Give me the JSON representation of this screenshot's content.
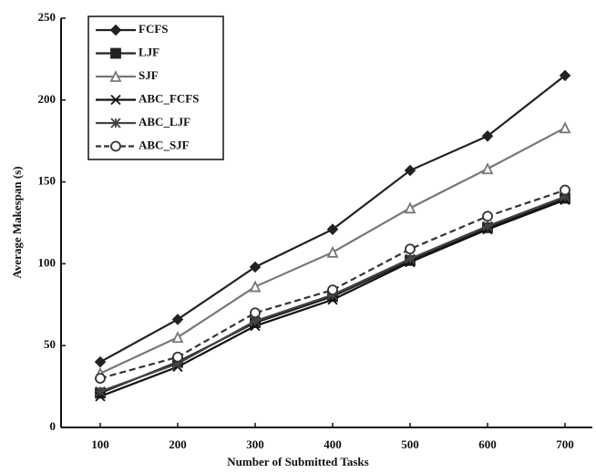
{
  "chart_data": {
    "type": "line",
    "xlabel": "Number of Submitted Tasks",
    "ylabel": "Average Makespan (s)",
    "categories": [
      "100",
      "200",
      "300",
      "400",
      "500",
      "600",
      "700"
    ],
    "series": [
      {
        "name": "FCFS",
        "color": "#222222",
        "marker": "diamond",
        "dash": "solid",
        "values": [
          40,
          66,
          98,
          121,
          157,
          178,
          215
        ]
      },
      {
        "name": "LJF",
        "color": "#222222",
        "marker": "square",
        "dash": "solid",
        "values": [
          21,
          40,
          64,
          80,
          102,
          122,
          140
        ]
      },
      {
        "name": "SJF",
        "color": "#777777",
        "marker": "triangle",
        "dash": "solid",
        "values": [
          33,
          55,
          86,
          107,
          134,
          158,
          183
        ]
      },
      {
        "name": "ABC_FCFS",
        "color": "#111111",
        "marker": "x",
        "dash": "solid",
        "values": [
          19,
          37,
          62,
          78,
          101,
          121,
          139
        ]
      },
      {
        "name": "ABC_LJF",
        "color": "#444444",
        "marker": "star",
        "dash": "solid",
        "values": [
          22,
          39,
          65,
          81,
          103,
          123,
          141
        ]
      },
      {
        "name": "ABC_SJF",
        "color": "#333333",
        "marker": "circle",
        "dash": "dashed",
        "values": [
          30,
          43,
          70,
          84,
          109,
          129,
          145
        ]
      }
    ],
    "ylim": [
      0,
      250
    ],
    "yticks": [
      0,
      50,
      100,
      150,
      200,
      250
    ],
    "grid": false
  }
}
